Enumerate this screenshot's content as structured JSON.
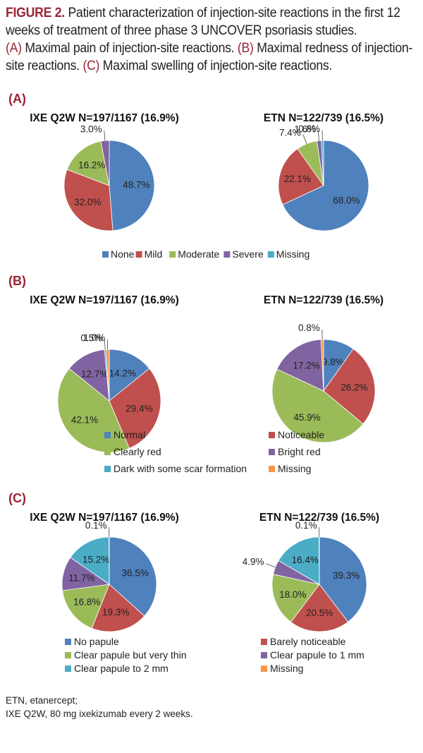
{
  "caption": {
    "figure_label": "FIGURE 2.",
    "line1": " Patient characterization of injection-site reactions in the first 12 weeks of treatment of three phase 3 UNCOVER psoriasis studies.",
    "a_label": "(A)",
    "a_text": " Maximal pain of injection-site reactions. ",
    "b_label": "(B)",
    "b_text": " Maximal redness of injection-site reactions. ",
    "c_label": "(C)",
    "c_text": " Maximal swelling of injection-site reactions."
  },
  "footnote": {
    "line1": "ETN, etanercept;",
    "line2": "IXE Q2W, 80 mg ixekizumab every 2 weeks."
  },
  "colors": {
    "caption_red": "#9b2335",
    "blue": "#4f81bd",
    "red": "#c0504d",
    "green": "#9bbb59",
    "purple": "#8064a2",
    "teal": "#4bacc6",
    "orange": "#f79646"
  },
  "chart_data": [
    {
      "panel": "(A)",
      "type": "pie",
      "legend": [
        "None",
        "Mild",
        "Moderate",
        "Severe",
        "Missing"
      ],
      "legend_colors": [
        "#4f81bd",
        "#c0504d",
        "#9bbb59",
        "#8064a2",
        "#4bacc6"
      ],
      "pies": [
        {
          "title": "IXE Q2W N=197/1167 (16.9%)",
          "values": [
            48.7,
            32.0,
            16.2,
            3.0,
            0.0
          ],
          "labels": [
            "48.7%",
            "32.0%",
            "16.2%",
            "3.0%",
            null
          ]
        },
        {
          "title": "ETN N=122/739 (16.5%)",
          "values": [
            68.0,
            22.1,
            7.4,
            1.6,
            0.8
          ],
          "labels": [
            "68.0%",
            "22.1%",
            "7.4%",
            "1.6%",
            "0.8%"
          ]
        }
      ]
    },
    {
      "panel": "(B)",
      "type": "pie",
      "legend": [
        "Normal",
        "Noticeable",
        "Clearly red",
        "Bright red",
        "Dark with some scar formation",
        "Missing"
      ],
      "legend_colors": [
        "#4f81bd",
        "#c0504d",
        "#9bbb59",
        "#8064a2",
        "#4bacc6",
        "#f79646"
      ],
      "pies": [
        {
          "title": "IXE Q2W N=197/1167 (16.9%)",
          "values": [
            14.2,
            29.4,
            42.1,
            12.7,
            0.5,
            1.0
          ],
          "labels": [
            "14.2%",
            "29.4%",
            "42.1%",
            "12.7%",
            "0.5%",
            "1.0%"
          ]
        },
        {
          "title": "ETN N=122/739 (16.5%)",
          "values": [
            9.8,
            26.2,
            45.9,
            17.2,
            0.0,
            0.8
          ],
          "labels": [
            "9.8%",
            "26.2%",
            "45.9%",
            "17.2%",
            null,
            "0.8%"
          ]
        }
      ]
    },
    {
      "panel": "(C)",
      "type": "pie",
      "legend": [
        "No papule",
        "Barely noticeable",
        "Clear papule but very thin",
        "Clear papule to 1 mm",
        "Clear papule to 2 mm",
        "Missing"
      ],
      "legend_colors": [
        "#4f81bd",
        "#c0504d",
        "#9bbb59",
        "#8064a2",
        "#4bacc6",
        "#f79646"
      ],
      "pies": [
        {
          "title": "IXE Q2W N=197/1167 (16.9%)",
          "values": [
            36.5,
            19.3,
            16.8,
            11.7,
            15.2,
            0.1
          ],
          "labels": [
            "36.5%",
            "19.3%",
            "16.8%",
            "11.7%",
            "15.2%",
            "0.1%"
          ]
        },
        {
          "title": "ETN N=122/739 (16.5%)",
          "values": [
            39.3,
            20.5,
            18.0,
            4.9,
            16.4,
            0.1
          ],
          "labels": [
            "39.3%",
            "20.5%",
            "18.0%",
            "4.9%",
            "16.4%",
            "0.1%"
          ]
        }
      ]
    }
  ]
}
